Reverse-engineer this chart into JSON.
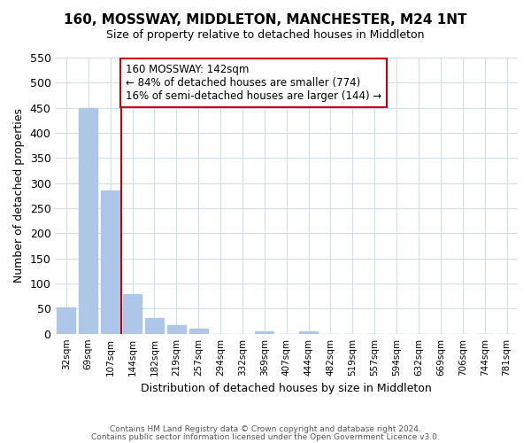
{
  "title": "160, MOSSWAY, MIDDLETON, MANCHESTER, M24 1NT",
  "subtitle": "Size of property relative to detached houses in Middleton",
  "xlabel": "Distribution of detached houses by size in Middleton",
  "ylabel": "Number of detached properties",
  "bar_labels": [
    "32sqm",
    "69sqm",
    "107sqm",
    "144sqm",
    "182sqm",
    "219sqm",
    "257sqm",
    "294sqm",
    "332sqm",
    "369sqm",
    "407sqm",
    "444sqm",
    "482sqm",
    "519sqm",
    "557sqm",
    "594sqm",
    "632sqm",
    "669sqm",
    "706sqm",
    "744sqm",
    "781sqm"
  ],
  "bar_values": [
    53,
    450,
    285,
    78,
    32,
    17,
    10,
    0,
    0,
    5,
    0,
    5,
    0,
    0,
    0,
    0,
    0,
    0,
    0,
    0,
    0
  ],
  "bar_color": "#aec6e8",
  "vline_x": 2.5,
  "vline_color": "#cc0000",
  "annotation_line1": "160 MOSSWAY: 142sqm",
  "annotation_line2": "← 84% of detached houses are smaller (774)",
  "annotation_line3": "16% of semi-detached houses are larger (144) →",
  "annotation_box_color": "#ffffff",
  "annotation_box_edgecolor": "#cc0000",
  "ylim": [
    0,
    550
  ],
  "yticks": [
    0,
    50,
    100,
    150,
    200,
    250,
    300,
    350,
    400,
    450,
    500,
    550
  ],
  "footer_line1": "Contains HM Land Registry data © Crown copyright and database right 2024.",
  "footer_line2": "Contains public sector information licensed under the Open Government Licence v3.0.",
  "background_color": "#ffffff",
  "grid_color": "#d0dce8"
}
